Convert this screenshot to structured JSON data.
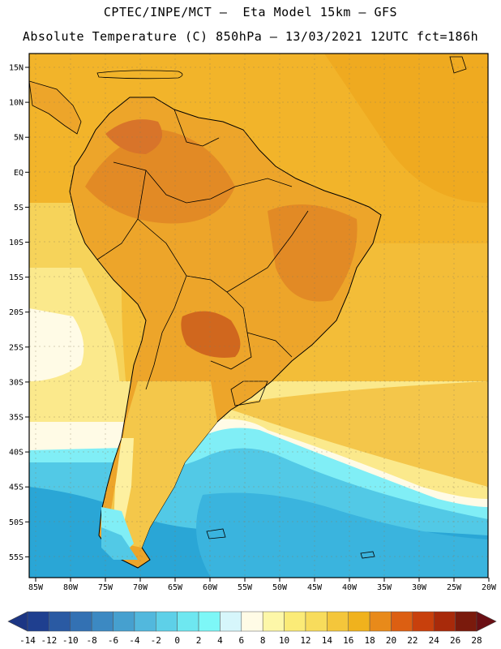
{
  "header": {
    "line1": "CPTEC/INPE/MCT –  Eta Model 15km – GFS",
    "line2": "Absolute Temperature (C) 850hPa – 13/03/2021 12UTC fct=186h"
  },
  "map": {
    "lat_labels": [
      "15N",
      "10N",
      "5N",
      "EQ",
      "5S",
      "10S",
      "15S",
      "20S",
      "25S",
      "30S",
      "35S",
      "40S",
      "45S",
      "50S",
      "55S"
    ],
    "lon_labels": [
      "85W",
      "80W",
      "75W",
      "70W",
      "65W",
      "60W",
      "55W",
      "50W",
      "45W",
      "40W",
      "35W",
      "30W",
      "25W",
      "20W"
    ]
  },
  "colorbar": {
    "labels": [
      "-14",
      "-12",
      "-10",
      "-8",
      "-6",
      "-4",
      "-2",
      "0",
      "2",
      "4",
      "6",
      "8",
      "10",
      "12",
      "14",
      "16",
      "18",
      "20",
      "22",
      "24",
      "26",
      "28"
    ],
    "colors": [
      "#1f3f8f",
      "#2a5aa3",
      "#3371b3",
      "#3c89c2",
      "#46a0cf",
      "#52b8dd",
      "#5ed0e8",
      "#6ee7f0",
      "#7df7f7",
      "#d6f6fb",
      "#fffbe6",
      "#fdf7a8",
      "#fbeb77",
      "#f8dc5c",
      "#f4c63b",
      "#f0b21d",
      "#e88a1a",
      "#dc5f12",
      "#c8400c",
      "#a82a0a",
      "#7a1a0c"
    ]
  },
  "palette": {
    "ocean_far_south": "#2aa6d6",
    "ocean_south": "#52c9e6",
    "ocean_cold": "#80eef6",
    "ocean_cool": "#fffbe6",
    "ocean_mild": "#fdf0a0",
    "ocean_warm": "#f6cf48",
    "ocean_north": "#f2b42a",
    "land_warm": "#eda52a",
    "land_hot": "#e28a25",
    "land_hottest": "#d0671e",
    "land_south": "#f4c74a",
    "andes_cold": "#fff5c4",
    "coast": "#000000"
  }
}
